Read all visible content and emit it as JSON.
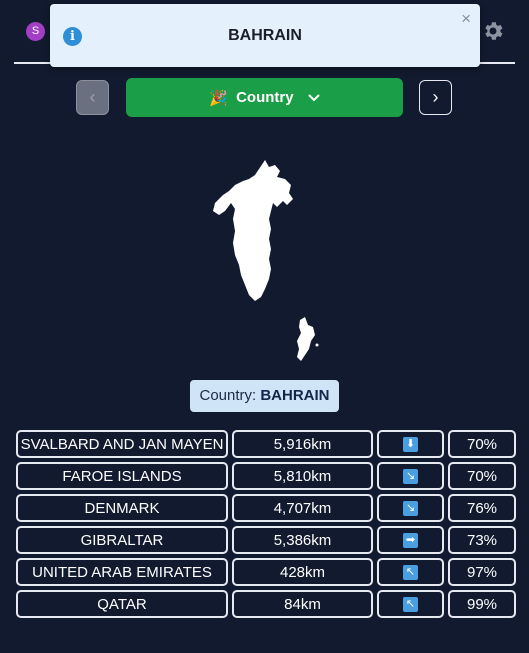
{
  "user": {
    "initial": "S"
  },
  "toast": {
    "title": "BAHRAIN",
    "close": "×",
    "icon": "info-icon"
  },
  "nav": {
    "prev": "‹",
    "next": "›"
  },
  "mode": {
    "emoji": "🎉",
    "label": "Country"
  },
  "answer": {
    "prefix": "Country: ",
    "name": "BAHRAIN"
  },
  "guesses": [
    {
      "name": "SVALBARD AND JAN MAYEN",
      "distance": "5,916km",
      "direction": "⬇",
      "proximity": "70%"
    },
    {
      "name": "FAROE ISLANDS",
      "distance": "5,810km",
      "direction": "↘",
      "proximity": "70%"
    },
    {
      "name": "DENMARK",
      "distance": "4,707km",
      "direction": "↘",
      "proximity": "76%"
    },
    {
      "name": "GIBRALTAR",
      "distance": "5,386km",
      "direction": "➡",
      "proximity": "73%"
    },
    {
      "name": "UNITED ARAB EMIRATES",
      "distance": "428km",
      "direction": "↖",
      "proximity": "97%"
    },
    {
      "name": "QATAR",
      "distance": "84km",
      "direction": "↖",
      "proximity": "99%"
    }
  ]
}
